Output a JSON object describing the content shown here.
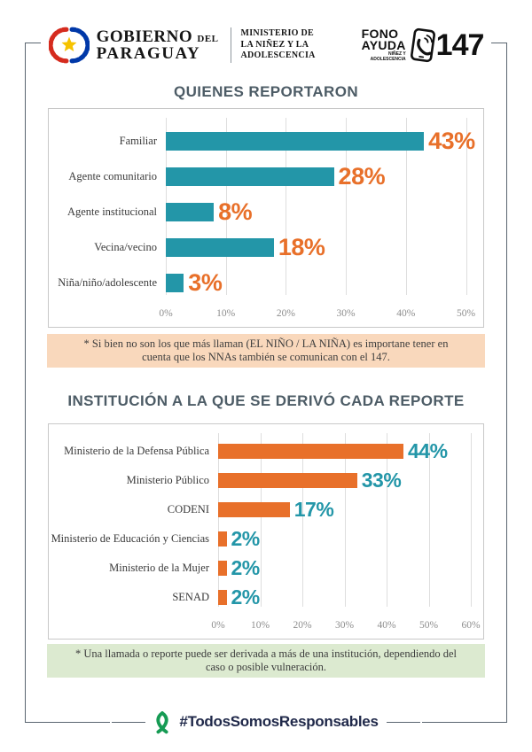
{
  "header": {
    "gov": {
      "line1": "GOBIERNO",
      "del": "DEL",
      "line2": "PARAGUAY"
    },
    "ministry": {
      "line1": "MINISTERIO DE",
      "line2": "LA NIÑEZ Y LA",
      "line3": "ADOLESCENCIA"
    },
    "fono": {
      "word1": "FONO",
      "word2": "AYUDA",
      "sub1": "NIÑEZ Y",
      "sub2": "ADOLESCENCIA",
      "number": "147"
    }
  },
  "chart_data": [
    {
      "type": "bar",
      "orientation": "horizontal",
      "title": "QUIENES REPORTARON",
      "categories": [
        "Familiar",
        "Agente comunitario",
        "Agente institucional",
        "Vecina/vecino",
        "Niña/niño/adolescente"
      ],
      "values": [
        43,
        28,
        8,
        18,
        3
      ],
      "value_labels": [
        "43%",
        "28%",
        "8%",
        "18%",
        "3%"
      ],
      "xlim": [
        0,
        50
      ],
      "xticks": [
        "0%",
        "10%",
        "20%",
        "30%",
        "40%",
        "50%"
      ],
      "grid": true,
      "legend": false,
      "bar_color": "#2396A8",
      "value_color": "#E8702A"
    },
    {
      "type": "bar",
      "orientation": "horizontal",
      "title": "INSTITUCIÓN A LA QUE SE DERIVÓ CADA REPORTE",
      "categories": [
        "Ministerio de la Defensa Pública",
        "Ministerio Público",
        "CODENI",
        "Ministerio de Educación y Ciencias",
        "Ministerio de la Mujer",
        "SENAD"
      ],
      "values": [
        44,
        33,
        17,
        2,
        2,
        2
      ],
      "value_labels": [
        "44%",
        "33%",
        "17%",
        "2%",
        "2%",
        "2%"
      ],
      "xlim": [
        0,
        60
      ],
      "xticks": [
        "0%",
        "10%",
        "20%",
        "30%",
        "40%",
        "50%",
        "60%"
      ],
      "grid": true,
      "legend": false,
      "bar_color": "#E8702A",
      "value_color": "#2396A8"
    }
  ],
  "notes": {
    "note1": "* Si bien no son los que más llaman (EL NIÑO / LA NIÑA) es importane tener en cuenta que los NNAs también se comunican con el 147.",
    "note1_bg": "#F9D8BC",
    "note2": "* Una llamada o reporte puede ser derivada a más de una institución, dependiendo del caso o posible vulneración.",
    "note2_bg": "#DCEAD0"
  },
  "footer": {
    "hashtag": "#TodosSomosResponsables"
  },
  "colors": {
    "teal": "#2396A8",
    "orange": "#E8702A",
    "title_slate": "#4D5C66",
    "ribbon_green": "#169B54",
    "navy": "#20294A",
    "frame": "#5A6570",
    "flag_red": "#D52B1E",
    "flag_blue": "#0038A8",
    "star_yellow": "#F6C300"
  }
}
